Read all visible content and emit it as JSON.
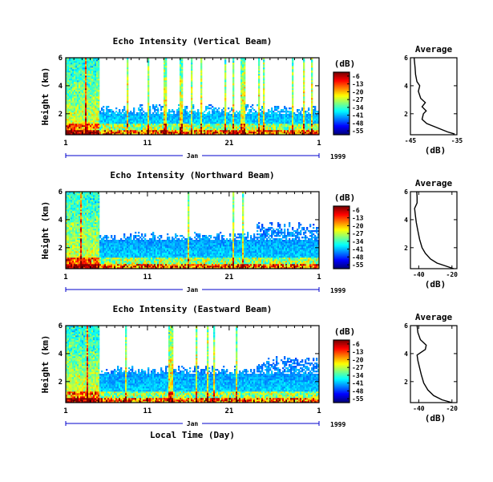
{
  "chart_data": [
    {
      "type": "heatmap",
      "title": "Echo Intensity (Vertical Beam)",
      "ylabel": "Height (km)",
      "y_ticks": [
        "2",
        "4",
        "6"
      ],
      "ylim": [
        0.5,
        6
      ],
      "x_ticks": [
        "1",
        "11",
        "21",
        "1"
      ],
      "x_month_label": "Jan",
      "year_label": "1999",
      "colorbar": {
        "unit": "(dB)",
        "ticks": [
          "-6",
          "-13",
          "-20",
          "-27",
          "-34",
          "-41",
          "-48",
          "-55"
        ],
        "range": [
          -55,
          -6
        ]
      },
      "average": {
        "title": "Average",
        "xlabel": "(dB)",
        "x_ticks": [
          "-45",
          "-35"
        ],
        "xlim": [
          -45,
          -35
        ],
        "y_ticks": [
          "2",
          "4",
          "6"
        ],
        "ylim": [
          0.5,
          6
        ],
        "profile": [
          [
            -35.5,
            0.55
          ],
          [
            -37,
            0.7
          ],
          [
            -38.5,
            0.9
          ],
          [
            -40,
            1.1
          ],
          [
            -41.5,
            1.3
          ],
          [
            -42.5,
            1.6
          ],
          [
            -42.2,
            2.0
          ],
          [
            -41.6,
            2.2
          ],
          [
            -42.5,
            2.5
          ],
          [
            -41.8,
            2.8
          ],
          [
            -42.8,
            3.1
          ],
          [
            -43.3,
            3.6
          ],
          [
            -43.0,
            4.0
          ],
          [
            -43.6,
            4.3
          ],
          [
            -43.9,
            4.8
          ],
          [
            -44.0,
            5.3
          ],
          [
            -44.2,
            6.0
          ]
        ]
      }
    },
    {
      "type": "heatmap",
      "title": "Echo Intensity (Northward Beam)",
      "ylabel": "Height (km)",
      "y_ticks": [
        "2",
        "4",
        "6"
      ],
      "ylim": [
        0.5,
        6
      ],
      "x_ticks": [
        "1",
        "11",
        "21",
        "1"
      ],
      "x_month_label": "Jan",
      "year_label": "1999",
      "colorbar": {
        "unit": "(dB)",
        "ticks": [
          "-6",
          "-13",
          "-20",
          "-27",
          "-34",
          "-41",
          "-48",
          "-55"
        ],
        "range": [
          -55,
          -6
        ]
      },
      "average": {
        "title": "Average",
        "xlabel": "(dB)",
        "x_ticks": [
          "-40",
          "-20"
        ],
        "xlim": [
          -45,
          -17
        ],
        "y_ticks": [
          "2",
          "4",
          "6"
        ],
        "ylim": [
          0.5,
          6
        ],
        "profile": [
          [
            -19,
            0.5
          ],
          [
            -24,
            0.7
          ],
          [
            -29,
            0.9
          ],
          [
            -33,
            1.2
          ],
          [
            -36,
            1.6
          ],
          [
            -38,
            2.0
          ],
          [
            -39.5,
            2.6
          ],
          [
            -40.5,
            3.2
          ],
          [
            -41.5,
            3.8
          ],
          [
            -42,
            4.3
          ],
          [
            -42.5,
            4.8
          ],
          [
            -41,
            5.2
          ],
          [
            -41,
            5.6
          ],
          [
            -41.2,
            6.0
          ]
        ]
      }
    },
    {
      "type": "heatmap",
      "title": "Echo Intensity (Eastward Beam)",
      "ylabel": "Height (km)",
      "y_ticks": [
        "2",
        "4",
        "6"
      ],
      "ylim": [
        0.5,
        6
      ],
      "x_ticks": [
        "1",
        "11",
        "21",
        "1"
      ],
      "x_month_label": "Jan",
      "year_label": "1999",
      "xlabel": "Local Time (Day)",
      "colorbar": {
        "unit": "(dB)",
        "ticks": [
          "-6",
          "-13",
          "-20",
          "-27",
          "-34",
          "-41",
          "-48",
          "-55"
        ],
        "range": [
          -55,
          -6
        ]
      },
      "average": {
        "title": "Average",
        "xlabel": "(dB)",
        "x_ticks": [
          "-40",
          "-20"
        ],
        "xlim": [
          -45,
          -17
        ],
        "y_ticks": [
          "2",
          "4",
          "6"
        ],
        "ylim": [
          0.5,
          6
        ],
        "profile": [
          [
            -20,
            0.5
          ],
          [
            -26,
            0.7
          ],
          [
            -31,
            1.0
          ],
          [
            -34.5,
            1.4
          ],
          [
            -37,
            1.9
          ],
          [
            -38.5,
            2.5
          ],
          [
            -39.5,
            3.0
          ],
          [
            -40.5,
            3.5
          ],
          [
            -41,
            3.9
          ],
          [
            -36,
            4.3
          ],
          [
            -35.5,
            4.6
          ],
          [
            -39,
            5.0
          ],
          [
            -40.5,
            5.5
          ],
          [
            -41,
            6.0
          ]
        ]
      }
    }
  ]
}
